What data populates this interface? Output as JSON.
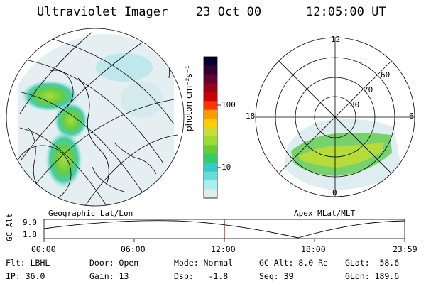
{
  "header": {
    "title": "Ultraviolet Imager",
    "date": "23 Oct 00",
    "time": "12:05:00 UT"
  },
  "colorbar": {
    "unit_label": "photon cm⁻²s⁻¹",
    "ticks": [
      "100",
      "10"
    ],
    "colors": [
      "#000033",
      "#330033",
      "#660033",
      "#99001a",
      "#cc0000",
      "#ff3300",
      "#ff9900",
      "#ffcc00",
      "#ccdd33",
      "#99dd33",
      "#66cc33",
      "#33cc66",
      "#33cccc",
      "#66dddd",
      "#aaeeee",
      "#ddeeee"
    ]
  },
  "left_map": {
    "caption": "Geographic Lat/Lon"
  },
  "right_polar": {
    "caption": "Apex MLat/MLT",
    "mlt_labels": {
      "top": "12",
      "right": "6",
      "bottom": "0",
      "left": "18"
    },
    "lat_labels": [
      "60",
      "70",
      "80"
    ]
  },
  "altitude_plot": {
    "ylabel": "GC Alt",
    "yticks": [
      "9.0",
      "1.8"
    ],
    "xticks": [
      "00:00",
      "06:00",
      "12:00",
      "18:00",
      "23:59"
    ],
    "marker_color": "#cc0000"
  },
  "footer": {
    "row1": {
      "filter": "Flt: LBHL",
      "door": "Door: Open",
      "mode": "Mode: Normal",
      "gc_alt": "GC Alt: 8.0 Re",
      "glat": "GLat:  58.6"
    },
    "row2": {
      "ip": "IP: 36.0",
      "gain": "Gain: 13",
      "dsp": "Dsp:   -1.8",
      "seq": "Seq: 39",
      "glon": "GLon: 189.6"
    }
  }
}
